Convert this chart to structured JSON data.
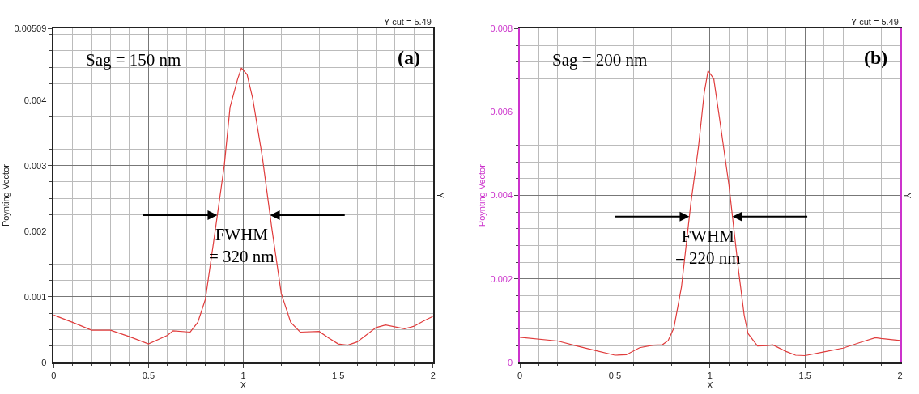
{
  "chart_data": [
    {
      "type": "line",
      "title": "(a)",
      "subtitle": "Y cut = 5.49",
      "xlabel": "X",
      "ylabel": "Poynting Vector",
      "y2label": "Y",
      "xlim": [
        0,
        2
      ],
      "xticks": [
        0,
        0.5,
        1,
        1.5,
        2
      ],
      "ylim": [
        0,
        0.00509
      ],
      "yticks": [
        0,
        0.001,
        0.002,
        0.003,
        0.004,
        0.00509
      ],
      "grid": true,
      "marker": "none",
      "line_style": "solid",
      "annotations": [
        "Sag = 150 nm",
        "FWHM\n= 320 nm"
      ],
      "series": [
        {
          "color": "#e03c3c",
          "x": [
            0,
            0.1,
            0.2,
            0.3,
            0.4,
            0.5,
            0.6,
            0.63,
            0.72,
            0.76,
            0.8,
            0.85,
            0.9,
            0.93,
            0.97,
            0.99,
            1.02,
            1.05,
            1.1,
            1.15,
            1.2,
            1.25,
            1.3,
            1.4,
            1.45,
            1.5,
            1.55,
            1.6,
            1.7,
            1.75,
            1.85,
            1.9,
            1.95,
            2
          ],
          "values": [
            0.00072,
            0.00061,
            0.00049,
            0.00049,
            0.00039,
            0.00028,
            0.00041,
            0.00048,
            0.00046,
            0.00061,
            0.00096,
            0.00197,
            0.00301,
            0.00389,
            0.00432,
            0.00449,
            0.00439,
            0.00402,
            0.00314,
            0.00205,
            0.00105,
            0.00061,
            0.00046,
            0.00047,
            0.00037,
            0.00028,
            0.00026,
            0.00031,
            0.00053,
            0.00057,
            0.00051,
            0.00055,
            0.00063,
            0.0007
          ]
        }
      ]
    },
    {
      "type": "line",
      "title": "(b)",
      "subtitle": "Y cut = 5.49",
      "xlabel": "X",
      "ylabel": "Poynting Vector",
      "y2label": "Y",
      "xlim": [
        0,
        2
      ],
      "xticks": [
        0,
        0.5,
        1,
        1.5,
        2
      ],
      "ylim": [
        0,
        0.008
      ],
      "yticks": [
        0,
        0.002,
        0.004,
        0.006,
        0.008
      ],
      "grid": true,
      "marker": "none",
      "line_style": "solid",
      "annotations": [
        "Sag = 200 nm",
        "FWHM\n= 220 nm"
      ],
      "series": [
        {
          "color": "#e03c3c",
          "x": [
            0,
            0.2,
            0.3,
            0.4,
            0.5,
            0.56,
            0.63,
            0.7,
            0.75,
            0.78,
            0.81,
            0.85,
            0.9,
            0.94,
            0.97,
            0.99,
            1.02,
            1.05,
            1.1,
            1.15,
            1.18,
            1.2,
            1.25,
            1.3,
            1.33,
            1.4,
            1.45,
            1.5,
            1.6,
            1.7,
            1.8,
            1.87,
            1.9,
            2
          ],
          "values": [
            0.0006,
            0.00051,
            0.00039,
            0.00028,
            0.00017,
            0.00018,
            0.00035,
            0.00041,
            0.00042,
            0.00052,
            0.00082,
            0.0018,
            0.00383,
            0.00518,
            0.00647,
            0.00699,
            0.0068,
            0.00586,
            0.00424,
            0.00221,
            0.00113,
            0.00069,
            0.00039,
            0.0004,
            0.00042,
            0.00026,
            0.00017,
            0.00016,
            0.00025,
            0.00034,
            0.00049,
            0.00059,
            0.00057,
            0.00052
          ]
        }
      ]
    }
  ]
}
